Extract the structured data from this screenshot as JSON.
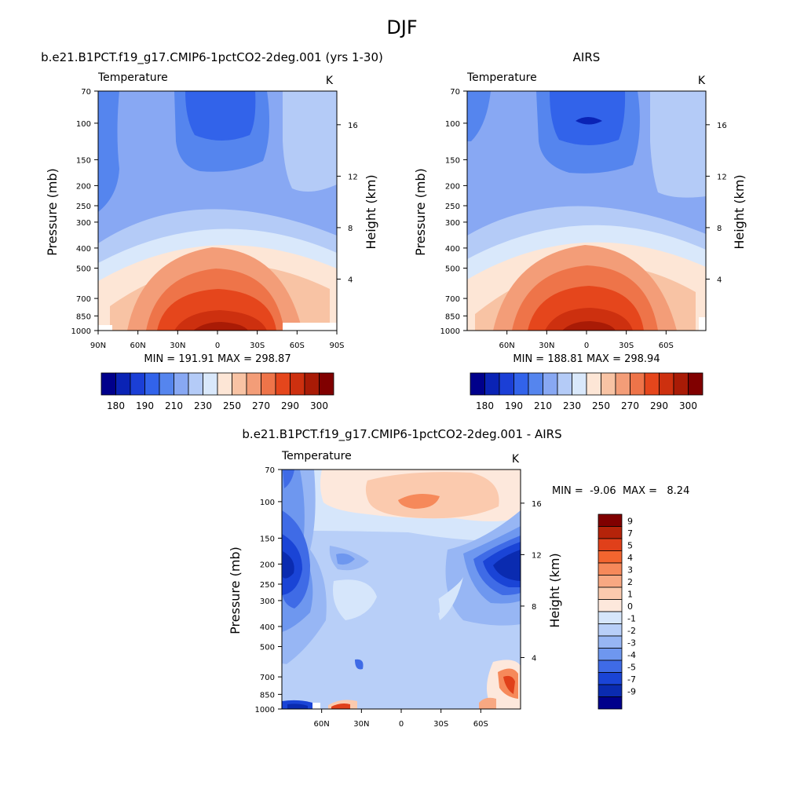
{
  "figure": {
    "title": "DJF"
  },
  "chart_data": [
    {
      "type": "heatmap",
      "title": "b.e21.B1PCT.f19_g17.CMIP6-1pctCO2-2deg.001 (yrs 1-30)",
      "left_label": "Temperature",
      "units": "K",
      "ylabel": "Pressure (mb)",
      "ylabel_right": "Height (km)",
      "x_ticks": [
        "90N",
        "60N",
        "30N",
        "0",
        "30S",
        "60S",
        "90S"
      ],
      "x_range": [
        90,
        -90
      ],
      "y_ticks": [
        "70",
        "100",
        "150",
        "200",
        "250",
        "300",
        "400",
        "500",
        "700",
        "850",
        "1000"
      ],
      "y_range": [
        70,
        1000
      ],
      "height_ticks": [
        "16",
        "12",
        "8",
        "4"
      ],
      "stats": "MIN = 191.91   MAX = 298.87",
      "min": 191.91,
      "max": 298.87,
      "colorbar_labels": [
        "180",
        "190",
        "210",
        "230",
        "250",
        "270",
        "290",
        "300"
      ]
    },
    {
      "type": "heatmap",
      "title": "AIRS",
      "left_label": "Temperature",
      "units": "K",
      "ylabel": "Pressure (mb)",
      "ylabel_right": "Height (km)",
      "x_ticks": [
        "60N",
        "30N",
        "0",
        "30S",
        "60S"
      ],
      "x_range": [
        90,
        -90
      ],
      "y_ticks": [
        "70",
        "100",
        "150",
        "200",
        "250",
        "300",
        "400",
        "500",
        "700",
        "850",
        "1000"
      ],
      "y_range": [
        70,
        1000
      ],
      "height_ticks": [
        "16",
        "12",
        "8",
        "4"
      ],
      "stats": "MIN = 188.81   MAX = 298.94",
      "min": 188.81,
      "max": 298.94,
      "colorbar_labels": [
        "180",
        "190",
        "210",
        "230",
        "250",
        "270",
        "290",
        "300"
      ]
    },
    {
      "type": "heatmap",
      "title": "b.e21.B1PCT.f19_g17.CMIP6-1pctCO2-2deg.001 - AIRS",
      "left_label": "Temperature",
      "units": "K",
      "ylabel": "Pressure (mb)",
      "ylabel_right": "Height (km)",
      "x_ticks": [
        "60N",
        "30N",
        "0",
        "30S",
        "60S"
      ],
      "x_range": [
        90,
        -90
      ],
      "y_ticks": [
        "70",
        "100",
        "150",
        "200",
        "250",
        "300",
        "400",
        "500",
        "700",
        "850",
        "1000"
      ],
      "y_range": [
        70,
        1000
      ],
      "height_ticks": [
        "16",
        "12",
        "8",
        "4"
      ],
      "stats": "MIN =  -9.06  MAX =   8.24",
      "min": -9.06,
      "max": 8.24,
      "colorbar_labels": [
        "9",
        "7",
        "5",
        "4",
        "3",
        "2",
        "1",
        "0",
        "-1",
        "-2",
        "-3",
        "-4",
        "-5",
        "-7",
        "-9"
      ]
    }
  ],
  "colors": {
    "abs_scale": [
      "#00008b",
      "#0a23b5",
      "#1b3fd6",
      "#3263ea",
      "#5585ee",
      "#88a8f3",
      "#b4cbf7",
      "#d9e8fb",
      "#fde6d6",
      "#f8c3a4",
      "#f39d78",
      "#ee7449",
      "#e5461c",
      "#cd300f",
      "#a91b06",
      "#800000"
    ],
    "diff_scale": [
      "#800000",
      "#b5230a",
      "#e0401a",
      "#f3652f",
      "#f6895a",
      "#f8a882",
      "#fbcaae",
      "#fde8dc",
      "#d6e6fb",
      "#b8cff8",
      "#97b6f4",
      "#6e97ef",
      "#3f6be6",
      "#1a44d6",
      "#0a2bb0",
      "#00008b"
    ]
  }
}
